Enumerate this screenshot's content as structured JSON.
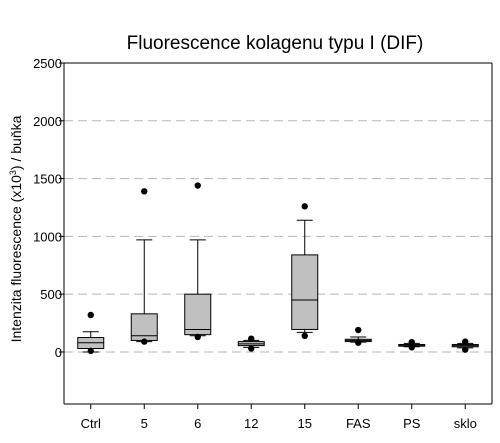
{
  "chart_data": {
    "type": "box",
    "title": "Fluorescence kolagenu typu I (DIF)",
    "ylabel": "Intenzita fluorescence (x10³) / buňka",
    "ylabel_parts": {
      "before": "Intenzita fluorescence (x10",
      "sup": "3",
      "after": ") / buňka"
    },
    "xlabel": "",
    "ylim": [
      -450,
      2500
    ],
    "yticks": [
      0,
      500,
      1000,
      1500,
      2000,
      2500
    ],
    "grid": "horizontal-dashed",
    "categories": [
      "Ctrl",
      "5",
      "6",
      "12",
      "15",
      "FAS",
      "PS",
      "sklo"
    ],
    "boxes": [
      {
        "category": "Ctrl",
        "whisker_low": 0,
        "q1": 30,
        "median": 80,
        "q3": 125,
        "whisker_high": 175,
        "outliers": [
          320,
          10
        ]
      },
      {
        "category": "5",
        "whisker_low": 90,
        "q1": 100,
        "median": 140,
        "q3": 330,
        "whisker_high": 970,
        "outliers": [
          1390,
          90
        ]
      },
      {
        "category": "6",
        "whisker_low": 140,
        "q1": 150,
        "median": 195,
        "q3": 500,
        "whisker_high": 970,
        "outliers": [
          1440,
          130
        ]
      },
      {
        "category": "12",
        "whisker_low": 40,
        "q1": 55,
        "median": 70,
        "q3": 90,
        "whisker_high": 100,
        "outliers": [
          115,
          30
        ]
      },
      {
        "category": "15",
        "whisker_low": 170,
        "q1": 195,
        "median": 450,
        "q3": 840,
        "whisker_high": 1140,
        "outliers": [
          1260,
          140
        ]
      },
      {
        "category": "FAS",
        "whisker_low": 85,
        "q1": 90,
        "median": 100,
        "q3": 110,
        "whisker_high": 130,
        "outliers": [
          190,
          80
        ]
      },
      {
        "category": "PS",
        "whisker_low": 45,
        "q1": 50,
        "median": 55,
        "q3": 65,
        "whisker_high": 75,
        "outliers": [
          85,
          40
        ]
      },
      {
        "category": "sklo",
        "whisker_low": 35,
        "q1": 45,
        "median": 55,
        "q3": 65,
        "whisker_high": 75,
        "outliers": [
          90,
          20
        ]
      }
    ]
  }
}
